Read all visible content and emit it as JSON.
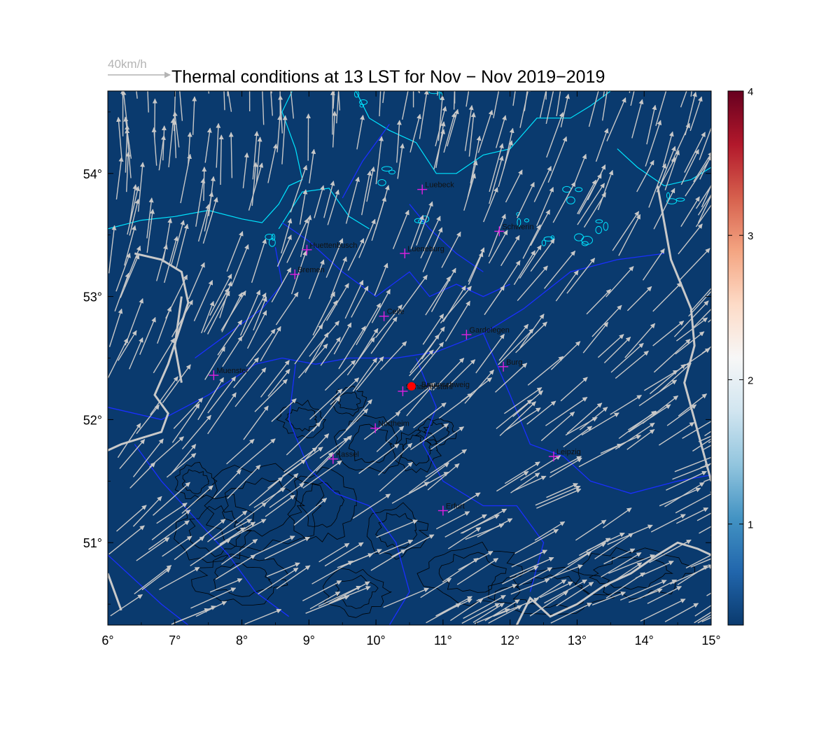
{
  "title": "Thermal conditions at 13 LST for Nov − Nov  2019−2019",
  "reference_vector": {
    "label": "40km/h",
    "speed_kmh": 40
  },
  "map": {
    "lon_range": [
      6,
      15
    ],
    "lat_range": [
      50.33,
      54.67
    ],
    "lon_ticks": [
      "6°",
      "7°",
      "8°",
      "9°",
      "10°",
      "11°",
      "12°",
      "13°",
      "14°",
      "15°"
    ],
    "lat_ticks": [
      "51°",
      "52°",
      "53°",
      "54°"
    ],
    "background_color": "#0a3a6e",
    "vector_color": "#c8c8c8",
    "coast_color": "#00e5ff",
    "border_color": "#1a2fff",
    "contour_color": "#000000",
    "river_color": "#c9c9c9",
    "station_marker": {
      "name": "Braunschweig",
      "lon": 10.53,
      "lat": 52.27,
      "color": "#ff0000"
    }
  },
  "cities": [
    {
      "name": "Luebeck",
      "lon": 10.69,
      "lat": 53.87
    },
    {
      "name": "Schwerin",
      "lon": 11.84,
      "lat": 53.53
    },
    {
      "name": "Huettenbusch",
      "lon": 8.97,
      "lat": 53.38
    },
    {
      "name": "Lueneburg",
      "lon": 10.43,
      "lat": 53.35
    },
    {
      "name": "Bremen",
      "lon": 8.79,
      "lat": 53.18
    },
    {
      "name": "Celle",
      "lon": 10.12,
      "lat": 52.84
    },
    {
      "name": "Gardelegen",
      "lon": 11.35,
      "lat": 52.69
    },
    {
      "name": "Burg",
      "lon": 11.9,
      "lat": 52.43
    },
    {
      "name": "Muenster",
      "lon": 7.58,
      "lat": 52.36
    },
    {
      "name": "Schaeferstuhl",
      "lon": 10.4,
      "lat": 52.23
    },
    {
      "name": "Northeim",
      "lon": 9.99,
      "lat": 51.93
    },
    {
      "name": "Kassel",
      "lon": 9.36,
      "lat": 51.68
    },
    {
      "name": "Leipzig",
      "lon": 12.65,
      "lat": 51.7
    },
    {
      "name": "Erfurt",
      "lon": 11.0,
      "lat": 51.26
    }
  ],
  "colorbar": {
    "range": [
      0.3,
      4
    ],
    "ticks": [
      "1",
      "2",
      "3",
      "4"
    ],
    "tick_values": [
      1,
      2,
      3,
      4
    ],
    "colors": [
      "#0a3a6e",
      "#2166ac",
      "#4393c3",
      "#92c5de",
      "#d1e5f0",
      "#f7f7f7",
      "#fddbc7",
      "#f4a582",
      "#d6604d",
      "#b2182b",
      "#67001f"
    ]
  },
  "wind_field": {
    "north_direction_to": 348,
    "south_direction_to": 62,
    "speed_kmh_range": [
      30,
      45
    ]
  }
}
